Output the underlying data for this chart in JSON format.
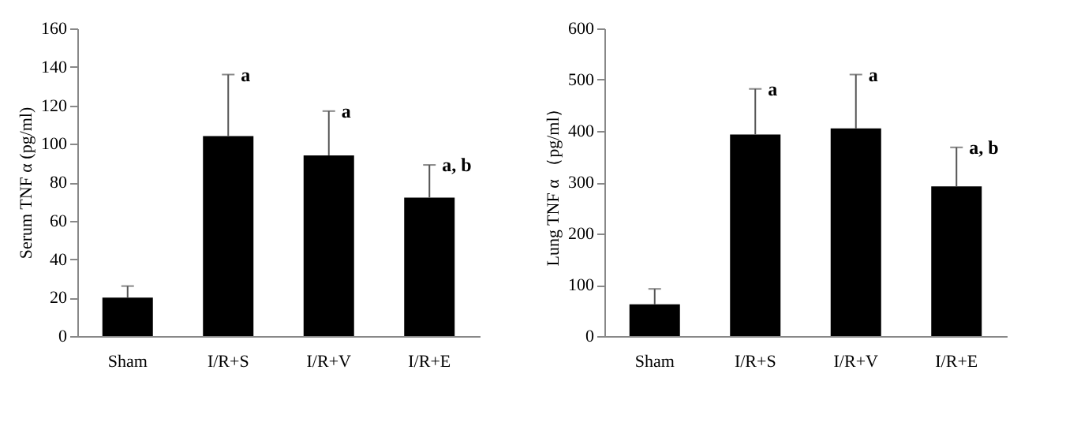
{
  "chart_data": [
    {
      "type": "bar",
      "ylabel": "Serum TNF α (pg/ml)",
      "categories": [
        "Sham",
        "I/R+S",
        "I/R+V",
        "I/R+E"
      ],
      "color": "#000000",
      "values": [
        20,
        104,
        94,
        72
      ],
      "errors": [
        [
          20,
          26
        ],
        [
          104,
          136
        ],
        [
          94,
          117
        ],
        [
          72,
          89
        ]
      ],
      "ylim": [
        0,
        160
      ],
      "yticks": [
        0,
        20,
        40,
        60,
        80,
        100,
        120,
        140,
        160
      ],
      "grid": false,
      "annotations": [
        {
          "text": "a",
          "x": "I/R+S",
          "y": 136
        },
        {
          "text": "a",
          "x": "I/R+V",
          "y": 117
        },
        {
          "text": "a, b",
          "x": "I/R+E",
          "y": 89
        }
      ]
    },
    {
      "type": "bar",
      "ylabel": "Lung TNF α （pg/ml）",
      "categories": [
        "Sham",
        "I/R+S",
        "I/R+V",
        "I/R+E"
      ],
      "color": "#000000",
      "values": [
        62,
        393,
        405,
        292
      ],
      "errors": [
        [
          62,
          92
        ],
        [
          393,
          482
        ],
        [
          405,
          510
        ],
        [
          292,
          368
        ]
      ],
      "ylim": [
        0,
        600
      ],
      "yticks": [
        0,
        100,
        200,
        300,
        400,
        500,
        600
      ],
      "grid": false,
      "annotations": [
        {
          "text": "a",
          "x": "I/R+S",
          "y": 482
        },
        {
          "text": "a",
          "x": "I/R+V",
          "y": 510
        },
        {
          "text": "a, b",
          "x": "I/R+E",
          "y": 368
        }
      ]
    }
  ]
}
